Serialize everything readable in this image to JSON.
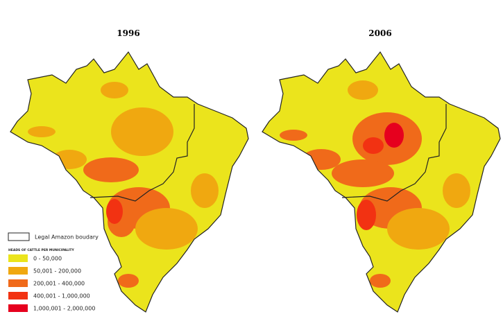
{
  "maps": [
    {
      "title": "1996"
    },
    {
      "title": "2006"
    }
  ],
  "legend": {
    "boundary_label": "Legal Amazon boudary",
    "heading": "HEADS OF CATTLE PER MUNICIPALITY",
    "classes": [
      {
        "label": "0 - 50,000",
        "color": "#ebe41c"
      },
      {
        "label": "50,001 - 200,000",
        "color": "#f0a810"
      },
      {
        "label": "200,001 - 400,000",
        "color": "#f06a1a"
      },
      {
        "label": "400,001 - 1,000,000",
        "color": "#f23212"
      },
      {
        "label": "1,000,001 - 2,000,000",
        "color": "#e6001e"
      }
    ]
  }
}
